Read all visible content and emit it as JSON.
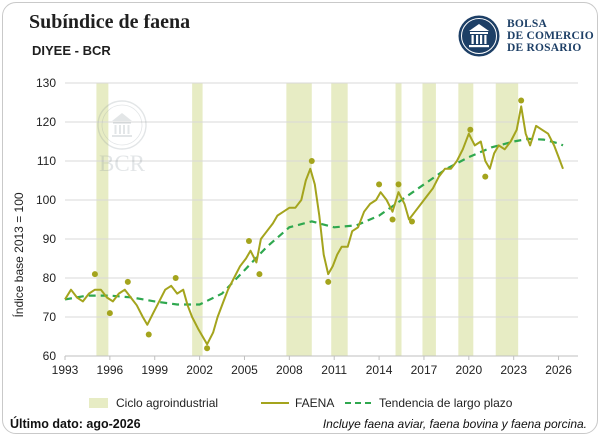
{
  "title": "Subíndice de faena",
  "subtitle": "DIYEE - BCR",
  "logo": {
    "lines": [
      "BOLSA",
      "DE COMERCIO",
      "DE ROSARIO"
    ],
    "watermark": "BCR",
    "icon": "building-columns-icon",
    "color": "#1d3f66"
  },
  "footer": {
    "last_data": "Último dato: ago-2026",
    "note": "Incluye faena aviar, faena bovina y faena porcina."
  },
  "colors": {
    "faena": "#a4a41d",
    "trend": "#2fa84f",
    "band": "#e7ecc4",
    "points": "#a4a41d",
    "grid": "#d9d9d9"
  },
  "chart_data": {
    "type": "line",
    "title": "Subíndice de faena",
    "ylabel": "Índice base 2013 = 100",
    "xlabel": "",
    "xlim": [
      1993,
      2027.3
    ],
    "ylim": [
      60,
      130
    ],
    "yticks": [
      60,
      70,
      80,
      90,
      100,
      110,
      120,
      130
    ],
    "xticks": [
      1993,
      1996,
      1999,
      2002,
      2005,
      2008,
      2011,
      2014,
      2017,
      2020,
      2023,
      2026
    ],
    "grid": "horizontal",
    "legend_position": "bottom",
    "legend": [
      "Ciclo agroindustrial",
      "FAENA",
      "Tendencia de largo plazo"
    ],
    "bands": [
      [
        1995.1,
        1995.9
      ],
      [
        2001.5,
        2002.2
      ],
      [
        2007.8,
        2009.5
      ],
      [
        2010.8,
        2011.9
      ],
      [
        2015.1,
        2015.5
      ],
      [
        2016.9,
        2017.8
      ],
      [
        2019.3,
        2020.3
      ],
      [
        2021.8,
        2023.3
      ]
    ],
    "series": [
      {
        "name": "FAENA",
        "style": "solid",
        "points": [
          [
            1993.0,
            74.5
          ],
          [
            1993.4,
            77
          ],
          [
            1993.8,
            75
          ],
          [
            1994.2,
            74
          ],
          [
            1994.6,
            76
          ],
          [
            1995.0,
            77
          ],
          [
            1995.4,
            77
          ],
          [
            1995.8,
            75
          ],
          [
            1996.2,
            74
          ],
          [
            1996.6,
            76
          ],
          [
            1997.0,
            77
          ],
          [
            1997.4,
            75
          ],
          [
            1997.8,
            73
          ],
          [
            1998.2,
            70
          ],
          [
            1998.5,
            68
          ],
          [
            1998.9,
            71
          ],
          [
            1999.3,
            74
          ],
          [
            1999.7,
            77
          ],
          [
            2000.1,
            78
          ],
          [
            2000.5,
            76
          ],
          [
            2000.9,
            77
          ],
          [
            2001.2,
            73
          ],
          [
            2001.5,
            70
          ],
          [
            2001.9,
            67
          ],
          [
            2002.2,
            65
          ],
          [
            2002.5,
            63
          ],
          [
            2002.9,
            66
          ],
          [
            2003.2,
            70
          ],
          [
            2003.6,
            74
          ],
          [
            2003.9,
            77
          ],
          [
            2004.3,
            80
          ],
          [
            2004.7,
            83
          ],
          [
            2005.1,
            85
          ],
          [
            2005.4,
            87
          ],
          [
            2005.8,
            84
          ],
          [
            2006.1,
            90
          ],
          [
            2006.5,
            92
          ],
          [
            2006.9,
            94
          ],
          [
            2007.2,
            96
          ],
          [
            2007.6,
            97
          ],
          [
            2008.0,
            98
          ],
          [
            2008.4,
            98
          ],
          [
            2008.8,
            100
          ],
          [
            2009.1,
            105
          ],
          [
            2009.4,
            108
          ],
          [
            2009.7,
            104
          ],
          [
            2010.0,
            96
          ],
          [
            2010.3,
            86
          ],
          [
            2010.6,
            81
          ],
          [
            2010.9,
            83
          ],
          [
            2011.2,
            86
          ],
          [
            2011.5,
            88
          ],
          [
            2011.9,
            88
          ],
          [
            2012.2,
            92
          ],
          [
            2012.6,
            93
          ],
          [
            2013.0,
            97
          ],
          [
            2013.4,
            99
          ],
          [
            2013.8,
            100
          ],
          [
            2014.1,
            102
          ],
          [
            2014.5,
            100
          ],
          [
            2014.9,
            97
          ],
          [
            2015.3,
            102
          ],
          [
            2015.7,
            99
          ],
          [
            2016.0,
            95
          ],
          [
            2016.4,
            97
          ],
          [
            2016.8,
            99
          ],
          [
            2017.2,
            101
          ],
          [
            2017.6,
            103
          ],
          [
            2018.0,
            106
          ],
          [
            2018.4,
            108
          ],
          [
            2018.8,
            108
          ],
          [
            2019.2,
            110
          ],
          [
            2019.6,
            113
          ],
          [
            2020.0,
            117
          ],
          [
            2020.4,
            114
          ],
          [
            2020.8,
            115
          ],
          [
            2021.1,
            110
          ],
          [
            2021.4,
            108
          ],
          [
            2021.7,
            112
          ],
          [
            2022.0,
            114
          ],
          [
            2022.4,
            113
          ],
          [
            2022.8,
            115
          ],
          [
            2023.2,
            118
          ],
          [
            2023.5,
            124
          ],
          [
            2023.8,
            117
          ],
          [
            2024.1,
            114
          ],
          [
            2024.5,
            119
          ],
          [
            2024.9,
            118
          ],
          [
            2025.3,
            117
          ],
          [
            2025.7,
            114
          ],
          [
            2026.0,
            111
          ],
          [
            2026.3,
            108
          ]
        ]
      },
      {
        "name": "Tendencia de largo plazo",
        "style": "dashed",
        "points": [
          [
            1993.0,
            74.5
          ],
          [
            1994.5,
            75.5
          ],
          [
            1996.0,
            75.5
          ],
          [
            1997.5,
            75
          ],
          [
            1999.0,
            74
          ],
          [
            2000.5,
            73.2
          ],
          [
            2002.0,
            73.2
          ],
          [
            2003.5,
            76
          ],
          [
            2005.0,
            82
          ],
          [
            2006.5,
            88
          ],
          [
            2008.0,
            93
          ],
          [
            2009.5,
            94.5
          ],
          [
            2011.0,
            93
          ],
          [
            2012.5,
            93.5
          ],
          [
            2014.0,
            96
          ],
          [
            2015.5,
            100
          ],
          [
            2017.0,
            104
          ],
          [
            2018.5,
            108
          ],
          [
            2020.0,
            111
          ],
          [
            2021.5,
            113.5
          ],
          [
            2023.0,
            115
          ],
          [
            2024.0,
            115.7
          ],
          [
            2025.0,
            115.5
          ],
          [
            2026.0,
            114.5
          ],
          [
            2026.3,
            114
          ]
        ]
      }
    ],
    "markers": [
      [
        1995.0,
        81
      ],
      [
        1996.0,
        71
      ],
      [
        1997.2,
        79
      ],
      [
        1998.6,
        65.5
      ],
      [
        2000.4,
        80
      ],
      [
        2002.5,
        62
      ],
      [
        2005.3,
        89.5
      ],
      [
        2006.0,
        81
      ],
      [
        2009.5,
        110
      ],
      [
        2010.6,
        79
      ],
      [
        2014.0,
        104
      ],
      [
        2014.9,
        95
      ],
      [
        2015.3,
        104
      ],
      [
        2016.2,
        94.5
      ],
      [
        2020.1,
        118
      ],
      [
        2021.1,
        106
      ],
      [
        2023.5,
        125.5
      ]
    ]
  }
}
